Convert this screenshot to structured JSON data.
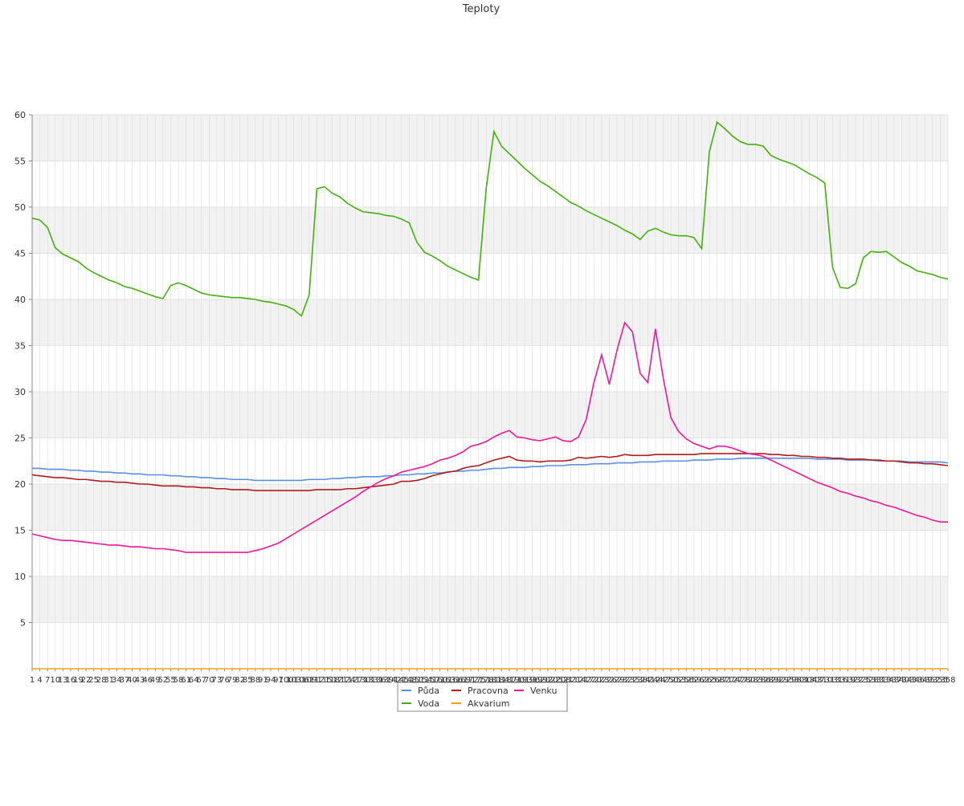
{
  "chart_data": {
    "type": "line",
    "title": "Teploty",
    "xlim": [
      1,
      358
    ],
    "ylim": [
      0,
      60
    ],
    "yticks": [
      5,
      10,
      15,
      20,
      25,
      30,
      35,
      40,
      45,
      50,
      55,
      60
    ],
    "grid": true,
    "x": [
      1,
      4,
      7,
      10,
      13,
      16,
      19,
      22,
      25,
      28,
      31,
      34,
      37,
      40,
      43,
      46,
      49,
      52,
      55,
      58,
      61,
      64,
      67,
      70,
      73,
      76,
      79,
      82,
      85,
      88,
      91,
      94,
      97,
      100,
      103,
      106,
      109,
      112,
      115,
      118,
      121,
      124,
      127,
      130,
      133,
      136,
      139,
      142,
      145,
      148,
      151,
      154,
      157,
      160,
      163,
      166,
      169,
      172,
      175,
      178,
      181,
      184,
      187,
      190,
      193,
      196,
      199,
      202,
      205,
      208,
      211,
      214,
      217,
      220,
      223,
      226,
      229,
      232,
      235,
      238,
      241,
      244,
      247,
      250,
      253,
      256,
      259,
      262,
      265,
      268,
      271,
      274,
      277,
      280,
      283,
      286,
      289,
      292,
      295,
      298,
      301,
      304,
      307,
      310,
      313,
      316,
      319,
      322,
      325,
      328,
      331,
      334,
      337,
      340,
      343,
      346,
      349,
      352,
      355,
      358
    ],
    "series": [
      {
        "name": "Půda",
        "color": "#5b8ee6",
        "values": [
          21.7,
          21.7,
          21.6,
          21.6,
          21.6,
          21.5,
          21.5,
          21.4,
          21.4,
          21.3,
          21.3,
          21.2,
          21.2,
          21.1,
          21.1,
          21.0,
          21.0,
          21.0,
          20.9,
          20.9,
          20.8,
          20.8,
          20.7,
          20.7,
          20.6,
          20.6,
          20.5,
          20.5,
          20.5,
          20.4,
          20.4,
          20.4,
          20.4,
          20.4,
          20.4,
          20.4,
          20.5,
          20.5,
          20.5,
          20.6,
          20.6,
          20.7,
          20.7,
          20.8,
          20.8,
          20.8,
          20.9,
          20.9,
          21.0,
          21.0,
          21.1,
          21.1,
          21.2,
          21.2,
          21.3,
          21.4,
          21.4,
          21.5,
          21.5,
          21.6,
          21.7,
          21.7,
          21.8,
          21.8,
          21.8,
          21.9,
          21.9,
          22.0,
          22.0,
          22.0,
          22.1,
          22.1,
          22.1,
          22.2,
          22.2,
          22.2,
          22.3,
          22.3,
          22.3,
          22.4,
          22.4,
          22.4,
          22.5,
          22.5,
          22.5,
          22.5,
          22.6,
          22.6,
          22.6,
          22.7,
          22.7,
          22.7,
          22.8,
          22.8,
          22.8,
          22.8,
          22.8,
          22.8,
          22.8,
          22.8,
          22.8,
          22.8,
          22.7,
          22.7,
          22.7,
          22.7,
          22.6,
          22.6,
          22.6,
          22.6,
          22.5,
          22.5,
          22.5,
          22.5,
          22.4,
          22.4,
          22.4,
          22.4,
          22.4,
          22.3
        ]
      },
      {
        "name": "Pracovna",
        "color": "#b01c1c",
        "values": [
          21,
          20.9,
          20.8,
          20.7,
          20.7,
          20.6,
          20.5,
          20.5,
          20.4,
          20.3,
          20.3,
          20.2,
          20.2,
          20.1,
          20.0,
          20.0,
          19.9,
          19.8,
          19.8,
          19.8,
          19.7,
          19.7,
          19.6,
          19.6,
          19.5,
          19.5,
          19.4,
          19.4,
          19.4,
          19.3,
          19.3,
          19.3,
          19.3,
          19.3,
          19.3,
          19.3,
          19.3,
          19.4,
          19.4,
          19.4,
          19.4,
          19.5,
          19.5,
          19.6,
          19.7,
          19.8,
          19.9,
          20.0,
          20.3,
          20.3,
          20.4,
          20.6,
          20.9,
          21.1,
          21.3,
          21.4,
          21.7,
          21.9,
          22.0,
          22.3,
          22.6,
          22.8,
          23.0,
          22.6,
          22.5,
          22.5,
          22.4,
          22.5,
          22.5,
          22.5,
          22.6,
          22.9,
          22.8,
          22.9,
          23.0,
          22.9,
          23.0,
          23.2,
          23.1,
          23.1,
          23.1,
          23.2,
          23.2,
          23.2,
          23.2,
          23.2,
          23.2,
          23.3,
          23.3,
          23.3,
          23.3,
          23.3,
          23.3,
          23.3,
          23.3,
          23.3,
          23.2,
          23.2,
          23.1,
          23.1,
          23.0,
          23.0,
          22.9,
          22.9,
          22.8,
          22.8,
          22.7,
          22.7,
          22.7,
          22.6,
          22.6,
          22.5,
          22.5,
          22.4,
          22.3,
          22.3,
          22.2,
          22.2,
          22.1,
          22.0
        ]
      },
      {
        "name": "Venku",
        "color": "#f0189a",
        "values": [
          14.6,
          14.4,
          14.2,
          14.0,
          13.9,
          13.9,
          13.8,
          13.7,
          13.6,
          13.5,
          13.4,
          13.4,
          13.3,
          13.2,
          13.2,
          13.1,
          13.0,
          13.0,
          12.9,
          12.8,
          12.6,
          12.6,
          12.6,
          12.6,
          12.6,
          12.6,
          12.6,
          12.6,
          12.6,
          12.8,
          13,
          13.3,
          13.6,
          14.1,
          14.6,
          15.1,
          15.6,
          16.1,
          16.6,
          17.1,
          17.6,
          18.1,
          18.6,
          19.2,
          19.7,
          20.2,
          20.6,
          20.9,
          21.3,
          21.5,
          21.7,
          21.9,
          22.2,
          22.6,
          22.8,
          23.1,
          23.5,
          24.1,
          24.3,
          24.6,
          25.1,
          25.5,
          25.8,
          25.1,
          25.0,
          24.8,
          24.7,
          24.9,
          25.1,
          24.7,
          24.6,
          25.1,
          27,
          31,
          34,
          30.8,
          34.5,
          37.5,
          36.5,
          32,
          31,
          36.8,
          31.5,
          27.2,
          25.7,
          24.9,
          24.4,
          24.1,
          23.8,
          24.1,
          24.1,
          23.9,
          23.6,
          23.3,
          23.2,
          23.0,
          22.6,
          22.2,
          21.8,
          21.4,
          21.0,
          20.6,
          20.2,
          19.9,
          19.6,
          19.2,
          19.0,
          18.7,
          18.5,
          18.2,
          18.0,
          17.7,
          17.5,
          17.2,
          16.9,
          16.6,
          16.4,
          16.1,
          15.9,
          15.9
        ]
      },
      {
        "name": "Voda",
        "color": "#44b010",
        "values": [
          48.8,
          48.6,
          47.8,
          45.6,
          44.9,
          44.5,
          44.1,
          43.4,
          42.9,
          42.5,
          42.1,
          41.8,
          41.4,
          41.2,
          40.9,
          40.6,
          40.3,
          40.1,
          41.5,
          41.8,
          41.5,
          41.1,
          40.7,
          40.5,
          40.4,
          40.3,
          40.2,
          40.2,
          40.1,
          40.0,
          39.8,
          39.7,
          39.5,
          39.3,
          38.9,
          38.2,
          40.5,
          52,
          52.2,
          51.5,
          51.1,
          50.4,
          49.9,
          49.5,
          49.4,
          49.3,
          49.1,
          49.0,
          48.7,
          48.3,
          46.2,
          45.1,
          44.7,
          44.2,
          43.6,
          43.2,
          42.8,
          42.4,
          42.1,
          52,
          58.2,
          56.6,
          55.8,
          55,
          54.2,
          53.5,
          52.8,
          52.3,
          51.7,
          51.1,
          50.5,
          50.1,
          49.6,
          49.2,
          48.8,
          48.4,
          48,
          47.5,
          47.1,
          46.5,
          47.4,
          47.7,
          47.3,
          47,
          46.9,
          46.9,
          46.7,
          45.5,
          56,
          59.2,
          58.5,
          57.7,
          57.1,
          56.8,
          56.8,
          56.6,
          55.6,
          55.2,
          54.9,
          54.6,
          54.1,
          53.6,
          53.2,
          52.6,
          43.5,
          41.3,
          41.2,
          41.7,
          44.5,
          45.2,
          45.1,
          45.2,
          44.6,
          44,
          43.6,
          43.1,
          42.9,
          42.7,
          42.4,
          42.2
        ]
      },
      {
        "name": "Akvarium",
        "color": "#f0a30a",
        "values": [
          0,
          0,
          0,
          0,
          0,
          0,
          0,
          0,
          0,
          0,
          0,
          0,
          0,
          0,
          0,
          0,
          0,
          0,
          0,
          0,
          0,
          0,
          0,
          0,
          0,
          0,
          0,
          0,
          0,
          0,
          0,
          0,
          0,
          0,
          0,
          0,
          0,
          0,
          0,
          0,
          0,
          0,
          0,
          0,
          0,
          0,
          0,
          0,
          0,
          0,
          0,
          0,
          0,
          0,
          0,
          0,
          0,
          0,
          0,
          0,
          0,
          0,
          0,
          0,
          0,
          0,
          0,
          0,
          0,
          0,
          0,
          0,
          0,
          0,
          0,
          0,
          0,
          0,
          0,
          0,
          0,
          0,
          0,
          0,
          0,
          0,
          0,
          0,
          0,
          0,
          0,
          0,
          0,
          0,
          0,
          0,
          0,
          0,
          0,
          0,
          0,
          0,
          0,
          0,
          0,
          0,
          0,
          0,
          0,
          0,
          0,
          0,
          0,
          0,
          0,
          0,
          0,
          0,
          0,
          0
        ]
      }
    ]
  }
}
